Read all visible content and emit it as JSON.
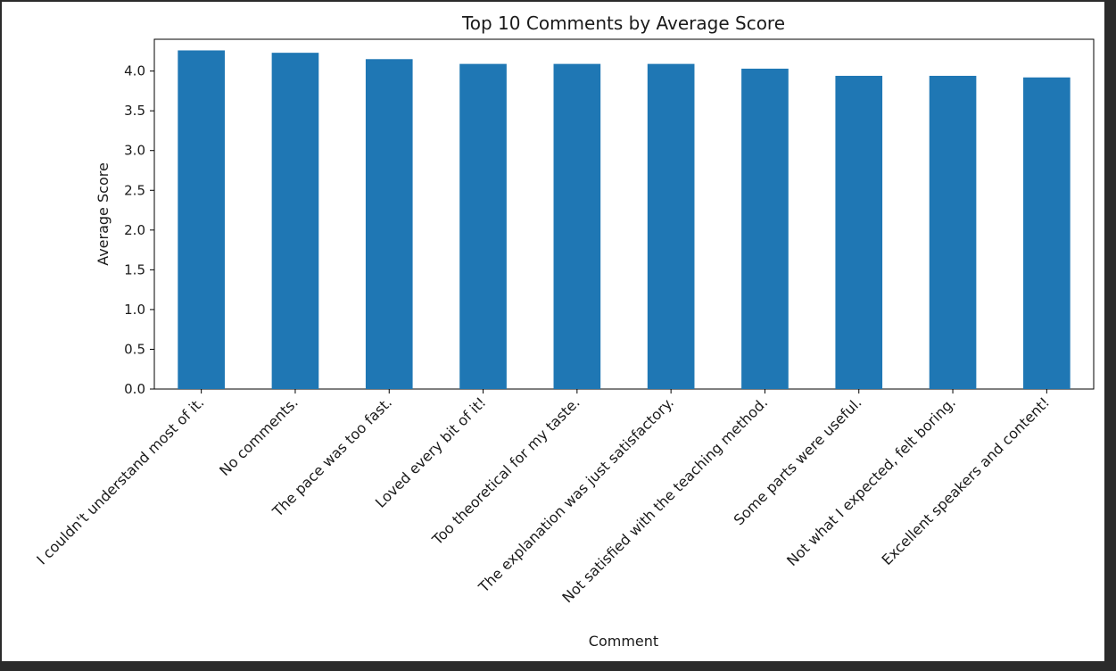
{
  "chart_data": {
    "type": "bar",
    "title": "Top 10 Comments by Average Score",
    "xlabel": "Comment",
    "ylabel": "Average Score",
    "categories": [
      "I couldn't understand most of it.",
      "No comments.",
      "The pace was too fast.",
      "Loved every bit of it!",
      "Too theoretical for my taste.",
      "The explanation was just satisfactory.",
      "Not satisfied with the teaching method.",
      "Some parts were useful.",
      "Not what I expected, felt boring.",
      "Excellent speakers and content!"
    ],
    "values": [
      4.26,
      4.23,
      4.15,
      4.09,
      4.09,
      4.09,
      4.03,
      3.94,
      3.94,
      3.92
    ],
    "ylim": [
      0,
      4.4
    ],
    "yticks": [
      "0.0",
      "0.5",
      "1.0",
      "1.5",
      "2.0",
      "2.5",
      "3.0",
      "3.5",
      "4.0"
    ],
    "bar_color": "#1f77b4",
    "grid": false,
    "legend": "none"
  }
}
